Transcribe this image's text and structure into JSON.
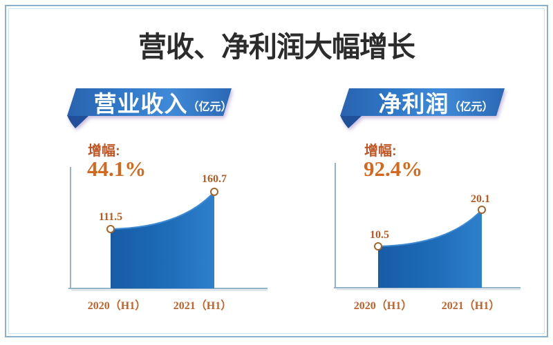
{
  "title": "营收、净利润大幅增长",
  "colors": {
    "banner_blue": "#2f74c4",
    "banner_fold": "#20509a",
    "area_blue_start": "#185ca5",
    "area_blue_end": "#2e80cd",
    "growth_orange": "#d2691e",
    "data_label_rust": "#b35c24",
    "category_rust": "#c0622a",
    "axis_gray": "#94b3c7",
    "frame_outer": "#8bb0cd",
    "frame_inner": "#cfe2f1",
    "title_color": "#2c2c2c",
    "marker_ring": "#a2652c"
  },
  "chart_data": [
    {
      "type": "area",
      "title": "营业收入",
      "unit_label": "（亿元）",
      "growth_label": "增幅:",
      "growth_value": "44.1%",
      "categories": [
        "2020（H1）",
        "2021（H1）"
      ],
      "values": [
        111.5,
        160.7
      ],
      "legend": false,
      "grid": false
    },
    {
      "type": "area",
      "title": "净利润",
      "unit_label": "（亿元）",
      "growth_label": "增幅:",
      "growth_value": "92.4%",
      "categories": [
        "2020（H1）",
        "2021（H1）"
      ],
      "values": [
        10.5,
        20.1
      ],
      "legend": false,
      "grid": false
    }
  ]
}
